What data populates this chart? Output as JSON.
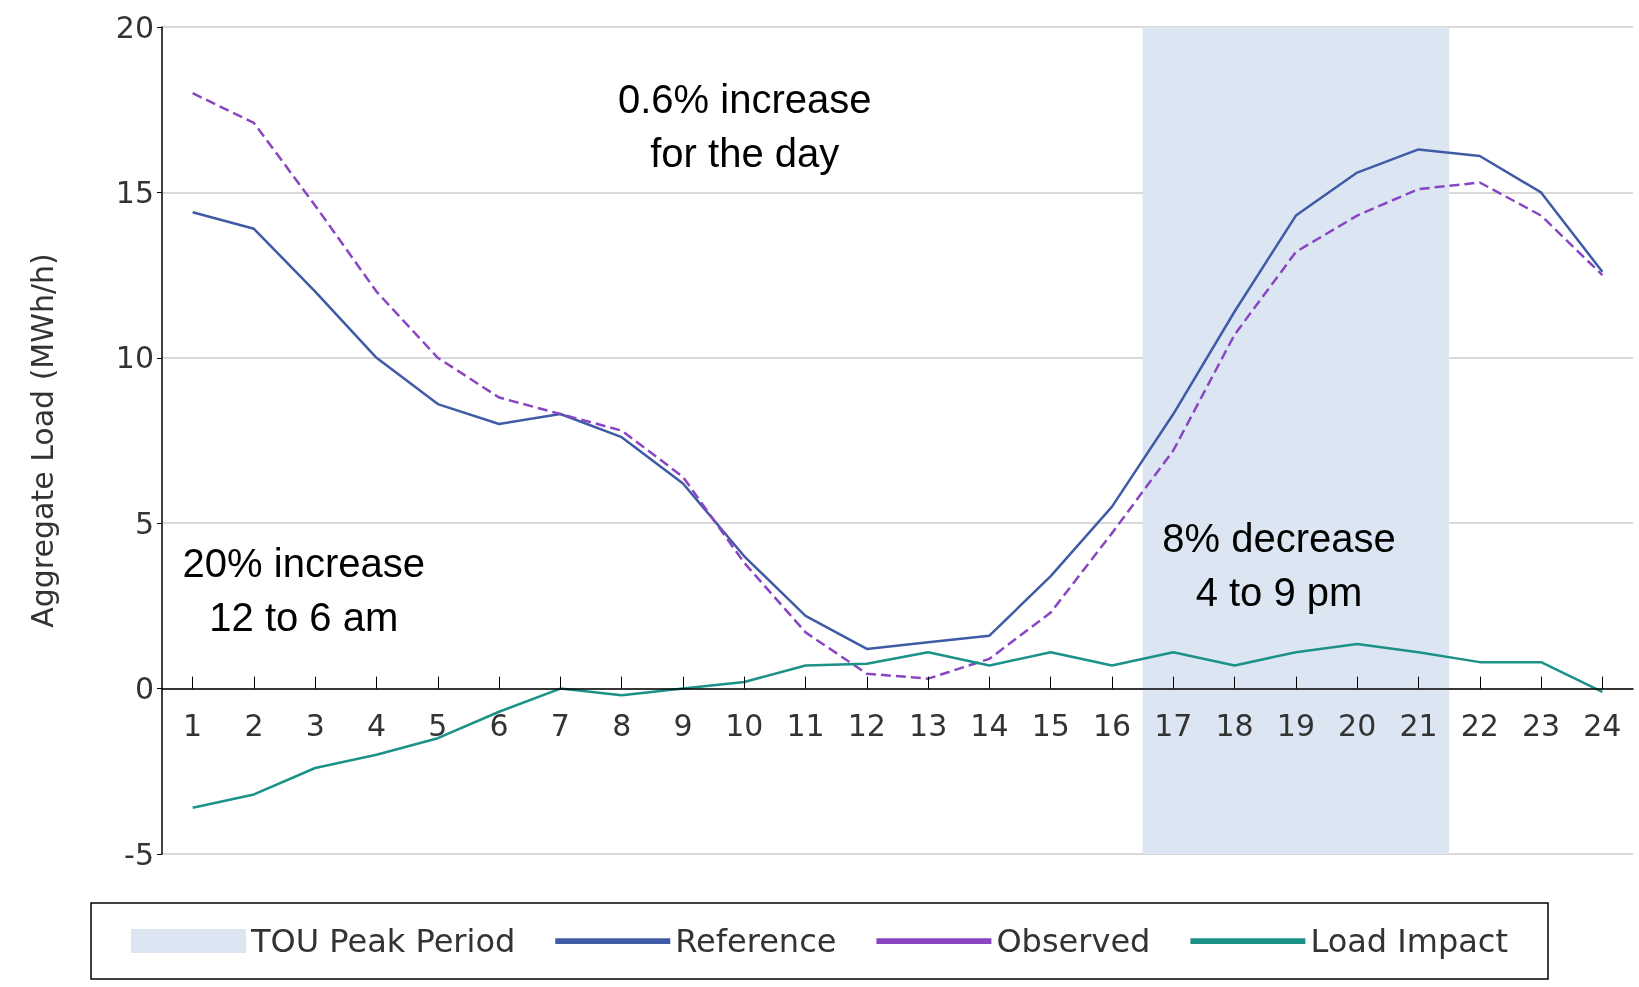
{
  "chart_data": {
    "type": "line",
    "ylabel": "Aggregate Load (MWh/h)",
    "x": [
      1,
      2,
      3,
      4,
      5,
      6,
      7,
      8,
      9,
      10,
      11,
      12,
      13,
      14,
      15,
      16,
      17,
      18,
      19,
      20,
      21,
      22,
      23,
      24
    ],
    "xlim": [
      0.5,
      24.5
    ],
    "xticks": [
      1,
      2,
      3,
      4,
      5,
      6,
      7,
      8,
      9,
      10,
      11,
      12,
      13,
      14,
      15,
      16,
      17,
      18,
      19,
      20,
      21,
      22,
      23,
      24
    ],
    "ylim": [
      -5,
      20
    ],
    "yticks": [
      -5,
      0,
      5,
      10,
      15,
      20
    ],
    "grid": "y",
    "legend": "bottom",
    "marker": "none",
    "series": [
      {
        "name": "Reference",
        "color": "#3f5ba6",
        "line_style": "solid",
        "values": [
          14.4,
          13.9,
          12.0,
          10.0,
          8.6,
          8.0,
          8.3,
          7.6,
          6.2,
          4.0,
          2.2,
          1.2,
          1.4,
          1.6,
          3.4,
          5.5,
          8.3,
          11.4,
          14.3,
          15.6,
          16.3,
          16.1,
          15.0,
          12.6
        ]
      },
      {
        "name": "Observed",
        "color": "#8a45c2",
        "line_style": "dashed",
        "values": [
          18.0,
          17.1,
          14.6,
          12.0,
          10.0,
          8.8,
          8.3,
          7.8,
          6.4,
          3.8,
          1.7,
          0.45,
          0.3,
          0.9,
          2.3,
          4.7,
          7.2,
          10.7,
          13.2,
          14.3,
          15.1,
          15.3,
          14.3,
          12.5
        ]
      },
      {
        "name": "Load Impact",
        "color": "#1b9188",
        "line_style": "solid",
        "values": [
          -3.6,
          -3.2,
          -2.4,
          -2.0,
          -1.5,
          -0.7,
          0,
          -0.2,
          0,
          0.2,
          0.7,
          0.75,
          1.1,
          0.7,
          1.1,
          0.7,
          1.1,
          0.7,
          1.1,
          1.35,
          1.1,
          0.8,
          0.8,
          -0.1
        ]
      }
    ],
    "bands": [
      {
        "axis": "x",
        "from": 16.5,
        "to": 21.5,
        "label": "TOU Peak Period",
        "color": "#dce6f2"
      }
    ],
    "annotations": [
      "0.6% increase\nfor the day",
      "20% increase\n12 to 6 am",
      "8% decrease\n4 to 9 pm"
    ]
  }
}
